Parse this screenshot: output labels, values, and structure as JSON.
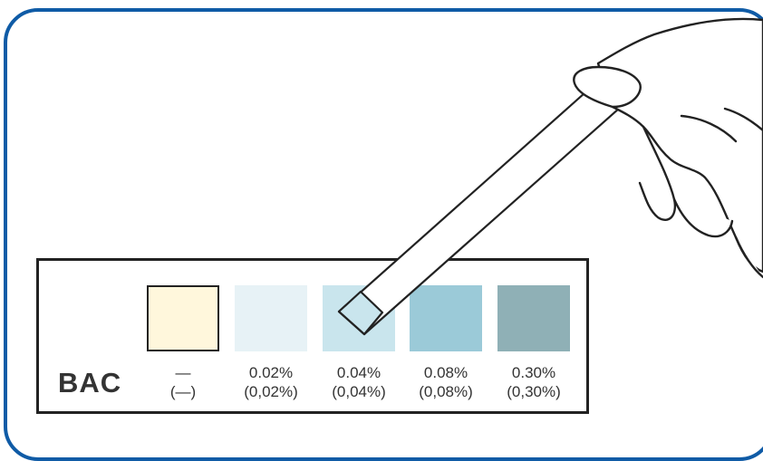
{
  "chart_label": "BAC",
  "scale": [
    {
      "value": "—",
      "value_alt": "(—)",
      "color": "#fff7dc",
      "outlined": true
    },
    {
      "value": "0.02%",
      "value_alt": "(0,02%)",
      "color": "#e7f2f6",
      "outlined": false
    },
    {
      "value": "0.04%",
      "value_alt": "(0,04%)",
      "color": "#c9e5ed",
      "outlined": false
    },
    {
      "value": "0.08%",
      "value_alt": "(0,08%)",
      "color": "#9bcad8",
      "outlined": false
    },
    {
      "value": "0.30%",
      "value_alt": "(0,30%)",
      "color": "#8fb0b6",
      "outlined": false
    }
  ],
  "colors": {
    "frame": "#0f5ba6",
    "outline": "#222222",
    "text": "#333333"
  }
}
